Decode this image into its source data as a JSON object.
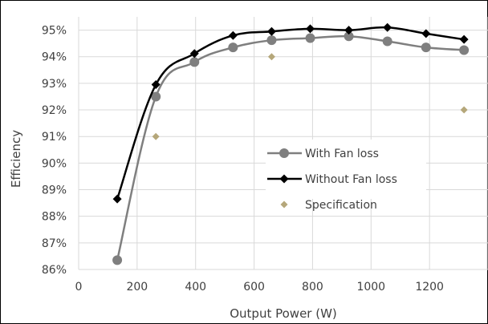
{
  "chart_data": {
    "type": "line",
    "title": "",
    "xlabel": "Output Power (W)",
    "ylabel": "Efficiency",
    "xlim": [
      0,
      1400
    ],
    "ylim": [
      86,
      95.5
    ],
    "xticks": [
      0,
      200,
      400,
      600,
      800,
      1000,
      1200
    ],
    "xtick_labels": [
      "0",
      "200",
      "400",
      "600",
      "800",
      "1000",
      "1200"
    ],
    "yticks": [
      86,
      87,
      88,
      89,
      90,
      91,
      92,
      93,
      94,
      95
    ],
    "ytick_labels": [
      "86%",
      "87%",
      "88%",
      "89%",
      "90%",
      "91%",
      "92%",
      "93%",
      "94%",
      "95%"
    ],
    "grid": true,
    "legend_position": "center-right",
    "series": [
      {
        "name": "With Fan loss",
        "style": "line-circle",
        "color": "#7f7f7f",
        "points": [
          [
            132,
            86.35
          ],
          [
            264,
            92.5
          ],
          [
            396,
            93.8
          ],
          [
            528,
            94.35
          ],
          [
            660,
            94.62
          ],
          [
            792,
            94.7
          ],
          [
            924,
            94.77
          ],
          [
            1056,
            94.58
          ],
          [
            1188,
            94.35
          ],
          [
            1318,
            94.25
          ]
        ]
      },
      {
        "name": "Without Fan loss",
        "style": "line-diamond",
        "color": "#000000",
        "points": [
          [
            132,
            88.65
          ],
          [
            264,
            92.95
          ],
          [
            396,
            94.12
          ],
          [
            528,
            94.8
          ],
          [
            660,
            94.95
          ],
          [
            792,
            95.05
          ],
          [
            924,
            95.0
          ],
          [
            1056,
            95.1
          ],
          [
            1188,
            94.87
          ],
          [
            1318,
            94.65
          ]
        ]
      },
      {
        "name": "Specification",
        "style": "marker-diamond",
        "color": "#b5a77a",
        "points": [
          [
            264,
            91.0
          ],
          [
            660,
            94.0
          ],
          [
            1318,
            92.0
          ]
        ]
      }
    ]
  }
}
